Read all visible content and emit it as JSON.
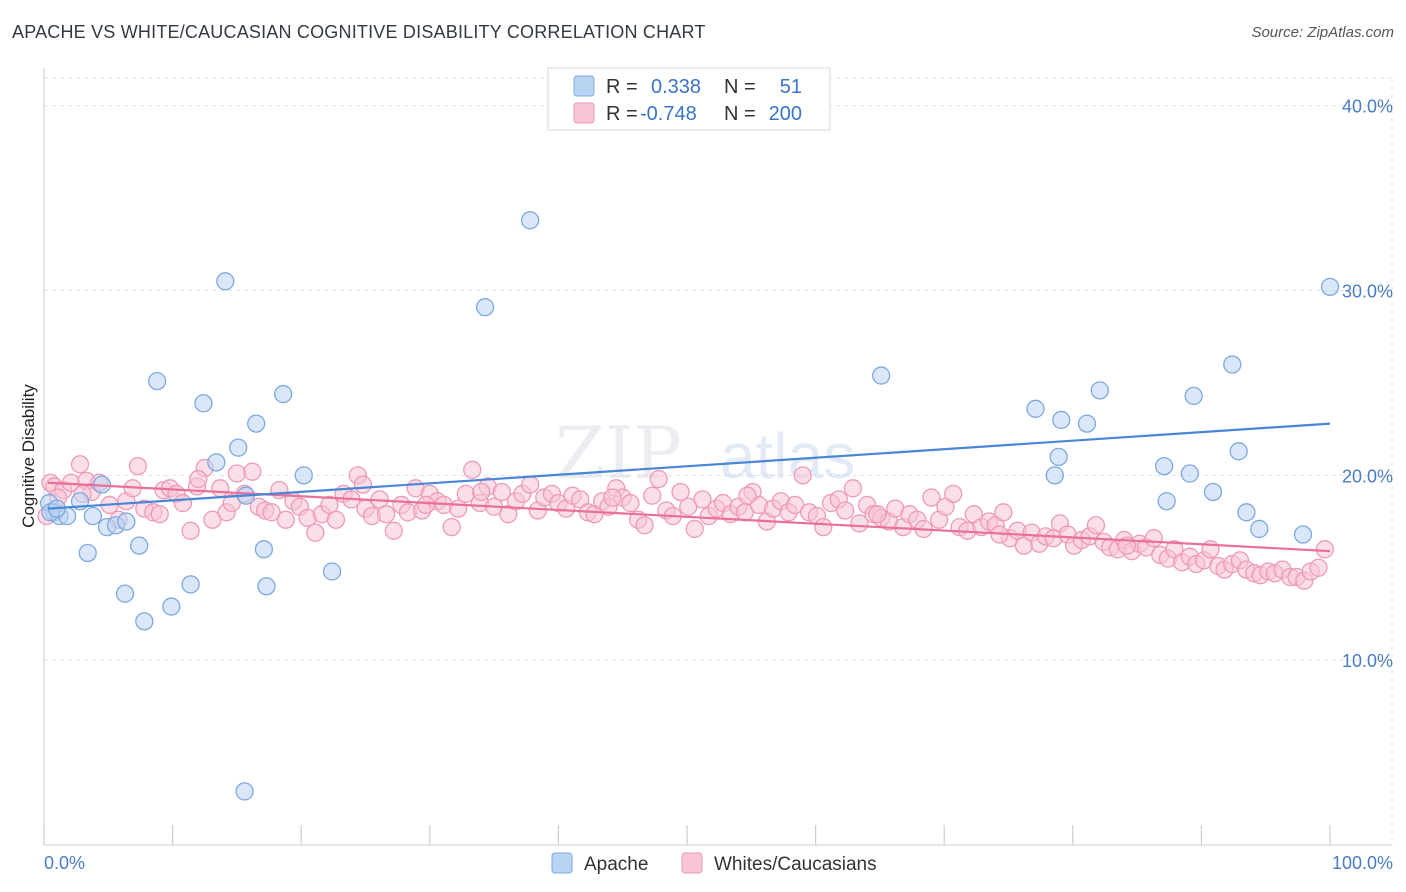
{
  "title": "APACHE VS WHITE/CAUCASIAN COGNITIVE DISABILITY CORRELATION CHART",
  "source": "Source: ZipAtlas.com",
  "watermark": {
    "zip": "ZIP",
    "atlas": "atlas"
  },
  "legend_stats": [
    {
      "r_label": "R =",
      "r_value": "0.338",
      "n_label": "N =",
      "n_value": "51",
      "color": "#a8c8f0"
    },
    {
      "r_label": "R =",
      "r_value": "-0.748",
      "n_label": "N =",
      "n_value": "200",
      "color": "#f5b8cc"
    }
  ],
  "chart_data": {
    "type": "scatter",
    "title": "APACHE VS WHITE/CAUCASIAN COGNITIVE DISABILITY CORRELATION CHART",
    "xlabel": "",
    "ylabel": "Cognitive Disability",
    "xlim": [
      0,
      100
    ],
    "ylim": [
      0,
      41.5
    ],
    "x_tick_labels": [
      "0.0%",
      "100.0%"
    ],
    "y_ticks": [
      10,
      20,
      30,
      40
    ],
    "y_tick_labels": [
      "10.0%",
      "20.0%",
      "30.0%",
      "40.0%"
    ],
    "grid": true,
    "legend_position": "top-center",
    "colors": {
      "apache": "#4a86d8",
      "apache_fill": "#b9d3f3",
      "white": "#e8709a",
      "white_fill": "#f8c5d6"
    },
    "series": [
      {
        "name": "Apache",
        "trend": {
          "x": [
            0,
            100
          ],
          "y": [
            18.2,
            22.8
          ]
        },
        "points": [
          [
            0.4,
            18.5
          ],
          [
            0.8,
            18.0
          ],
          [
            1.2,
            17.8
          ],
          [
            1.8,
            17.8
          ],
          [
            2.8,
            18.6
          ],
          [
            3.4,
            15.8
          ],
          [
            3.8,
            17.8
          ],
          [
            4.5,
            19.5
          ],
          [
            4.9,
            17.2
          ],
          [
            5.6,
            17.3
          ],
          [
            6.4,
            17.5
          ],
          [
            6.3,
            13.6
          ],
          [
            7.4,
            16.2
          ],
          [
            7.8,
            12.1
          ],
          [
            8.8,
            25.1
          ],
          [
            9.9,
            12.9
          ],
          [
            11.4,
            14.1
          ],
          [
            12.4,
            23.9
          ],
          [
            13.4,
            20.7
          ],
          [
            14.1,
            30.5
          ],
          [
            15.1,
            21.5
          ],
          [
            15.6,
            2.9
          ],
          [
            15.7,
            18.9
          ],
          [
            16.5,
            22.8
          ],
          [
            17.1,
            16.0
          ],
          [
            17.3,
            14.0
          ],
          [
            18.6,
            24.4
          ],
          [
            20.2,
            20.0
          ],
          [
            22.4,
            14.8
          ],
          [
            34.3,
            29.1
          ],
          [
            37.8,
            33.8
          ],
          [
            65.1,
            25.4
          ],
          [
            77.1,
            23.6
          ],
          [
            78.6,
            20.0
          ],
          [
            78.9,
            21.0
          ],
          [
            79.1,
            23.0
          ],
          [
            81.1,
            22.8
          ],
          [
            82.1,
            24.6
          ],
          [
            87.1,
            20.5
          ],
          [
            87.3,
            18.6
          ],
          [
            89.1,
            20.1
          ],
          [
            89.4,
            24.3
          ],
          [
            90.9,
            19.1
          ],
          [
            92.4,
            26.0
          ],
          [
            92.9,
            21.3
          ],
          [
            93.5,
            18.0
          ],
          [
            94.5,
            17.1
          ],
          [
            97.9,
            16.8
          ],
          [
            100.0,
            30.2
          ],
          [
            0.5,
            18.0
          ],
          [
            1.0,
            18.2
          ]
        ]
      },
      {
        "name": "Whites/Caucasians",
        "trend": {
          "x": [
            0,
            100
          ],
          "y": [
            19.6,
            15.9
          ]
        },
        "points": [
          [
            0.2,
            17.8
          ],
          [
            0.5,
            19.6
          ],
          [
            0.8,
            19.4
          ],
          [
            1.5,
            19.2
          ],
          [
            2.1,
            19.6
          ],
          [
            2.8,
            20.6
          ],
          [
            3.3,
            19.7
          ],
          [
            3.7,
            19.1
          ],
          [
            4.3,
            19.6
          ],
          [
            5.1,
            18.4
          ],
          [
            5.8,
            17.6
          ],
          [
            6.4,
            18.6
          ],
          [
            7.3,
            20.5
          ],
          [
            7.8,
            18.2
          ],
          [
            8.5,
            18.0
          ],
          [
            9.0,
            17.9
          ],
          [
            9.3,
            19.2
          ],
          [
            9.8,
            19.3
          ],
          [
            10.3,
            19.0
          ],
          [
            10.8,
            18.5
          ],
          [
            11.4,
            17.0
          ],
          [
            11.9,
            19.4
          ],
          [
            12.5,
            20.4
          ],
          [
            13.1,
            17.6
          ],
          [
            13.7,
            19.3
          ],
          [
            14.2,
            18.0
          ],
          [
            15.0,
            20.1
          ],
          [
            15.6,
            19.0
          ],
          [
            16.2,
            20.2
          ],
          [
            16.7,
            18.3
          ],
          [
            17.2,
            18.1
          ],
          [
            17.7,
            18.0
          ],
          [
            18.3,
            19.2
          ],
          [
            18.8,
            17.6
          ],
          [
            19.4,
            18.6
          ],
          [
            19.9,
            18.3
          ],
          [
            20.5,
            17.7
          ],
          [
            21.1,
            16.9
          ],
          [
            21.6,
            17.9
          ],
          [
            22.2,
            18.4
          ],
          [
            22.7,
            17.6
          ],
          [
            23.3,
            19.0
          ],
          [
            23.9,
            18.7
          ],
          [
            24.4,
            20.0
          ],
          [
            25.0,
            18.2
          ],
          [
            25.5,
            17.8
          ],
          [
            26.1,
            18.7
          ],
          [
            26.6,
            17.9
          ],
          [
            27.2,
            17.0
          ],
          [
            27.8,
            18.4
          ],
          [
            28.3,
            18.0
          ],
          [
            28.9,
            19.3
          ],
          [
            29.4,
            18.1
          ],
          [
            30.0,
            19.0
          ],
          [
            30.6,
            18.6
          ],
          [
            31.1,
            18.4
          ],
          [
            31.7,
            17.2
          ],
          [
            32.2,
            18.2
          ],
          [
            32.8,
            19.0
          ],
          [
            33.3,
            20.3
          ],
          [
            33.9,
            18.5
          ],
          [
            34.5,
            19.4
          ],
          [
            35.0,
            18.3
          ],
          [
            35.6,
            19.1
          ],
          [
            36.1,
            17.9
          ],
          [
            36.7,
            18.6
          ],
          [
            37.2,
            19.0
          ],
          [
            37.8,
            19.5
          ],
          [
            38.4,
            18.1
          ],
          [
            38.9,
            18.8
          ],
          [
            39.5,
            19.0
          ],
          [
            40.0,
            18.5
          ],
          [
            40.6,
            18.2
          ],
          [
            41.1,
            18.9
          ],
          [
            41.7,
            18.7
          ],
          [
            42.3,
            18.0
          ],
          [
            42.8,
            17.9
          ],
          [
            43.4,
            18.6
          ],
          [
            43.9,
            18.3
          ],
          [
            44.5,
            19.3
          ],
          [
            45.0,
            18.8
          ],
          [
            45.6,
            18.5
          ],
          [
            46.2,
            17.6
          ],
          [
            46.7,
            17.3
          ],
          [
            47.3,
            18.9
          ],
          [
            47.8,
            19.8
          ],
          [
            48.4,
            18.1
          ],
          [
            48.9,
            17.8
          ],
          [
            49.5,
            19.1
          ],
          [
            50.1,
            18.3
          ],
          [
            50.6,
            17.1
          ],
          [
            51.2,
            18.7
          ],
          [
            51.7,
            17.8
          ],
          [
            52.3,
            18.2
          ],
          [
            52.8,
            18.5
          ],
          [
            53.4,
            17.9
          ],
          [
            54.0,
            18.3
          ],
          [
            54.5,
            18.0
          ],
          [
            55.1,
            19.1
          ],
          [
            55.6,
            18.4
          ],
          [
            56.2,
            17.5
          ],
          [
            56.7,
            18.2
          ],
          [
            57.3,
            18.6
          ],
          [
            57.9,
            18.0
          ],
          [
            58.4,
            18.4
          ],
          [
            59.0,
            20.0
          ],
          [
            59.5,
            18.0
          ],
          [
            60.1,
            17.8
          ],
          [
            60.6,
            17.2
          ],
          [
            61.2,
            18.5
          ],
          [
            61.8,
            18.7
          ],
          [
            62.3,
            18.1
          ],
          [
            62.9,
            19.3
          ],
          [
            63.4,
            17.4
          ],
          [
            64.0,
            18.4
          ],
          [
            64.5,
            17.9
          ],
          [
            65.1,
            17.7
          ],
          [
            65.7,
            17.5
          ],
          [
            66.2,
            18.2
          ],
          [
            66.8,
            17.2
          ],
          [
            67.3,
            17.9
          ],
          [
            67.9,
            17.6
          ],
          [
            68.4,
            17.1
          ],
          [
            69.0,
            18.8
          ],
          [
            69.6,
            17.6
          ],
          [
            70.1,
            18.3
          ],
          [
            70.7,
            19.0
          ],
          [
            71.2,
            17.2
          ],
          [
            71.8,
            17.0
          ],
          [
            72.3,
            17.9
          ],
          [
            72.9,
            17.2
          ],
          [
            73.5,
            17.5
          ],
          [
            74.0,
            17.3
          ],
          [
            74.6,
            18.0
          ],
          [
            75.1,
            16.6
          ],
          [
            75.7,
            17.0
          ],
          [
            76.2,
            16.2
          ],
          [
            76.8,
            16.9
          ],
          [
            77.4,
            16.3
          ],
          [
            77.9,
            16.7
          ],
          [
            78.5,
            16.6
          ],
          [
            79.0,
            17.4
          ],
          [
            79.6,
            16.8
          ],
          [
            80.1,
            16.2
          ],
          [
            80.7,
            16.5
          ],
          [
            81.3,
            16.7
          ],
          [
            81.8,
            17.3
          ],
          [
            82.4,
            16.4
          ],
          [
            82.9,
            16.1
          ],
          [
            83.5,
            16.0
          ],
          [
            84.0,
            16.5
          ],
          [
            84.6,
            15.9
          ],
          [
            85.2,
            16.3
          ],
          [
            85.7,
            16.1
          ],
          [
            86.3,
            16.6
          ],
          [
            86.8,
            15.7
          ],
          [
            87.4,
            15.5
          ],
          [
            87.9,
            16.0
          ],
          [
            88.5,
            15.3
          ],
          [
            89.1,
            15.6
          ],
          [
            89.6,
            15.2
          ],
          [
            90.2,
            15.4
          ],
          [
            90.7,
            16.0
          ],
          [
            91.3,
            15.1
          ],
          [
            91.8,
            14.9
          ],
          [
            92.4,
            15.2
          ],
          [
            93.0,
            15.4
          ],
          [
            93.5,
            14.9
          ],
          [
            94.1,
            14.7
          ],
          [
            94.6,
            14.6
          ],
          [
            95.2,
            14.8
          ],
          [
            95.7,
            14.7
          ],
          [
            96.3,
            14.9
          ],
          [
            96.9,
            14.5
          ],
          [
            97.4,
            14.5
          ],
          [
            98.0,
            14.3
          ],
          [
            98.5,
            14.8
          ],
          [
            99.1,
            15.0
          ],
          [
            99.6,
            16.0
          ],
          [
            1.1,
            18.8
          ],
          [
            3.0,
            19.0
          ],
          [
            6.9,
            19.3
          ],
          [
            12.0,
            19.8
          ],
          [
            14.6,
            18.5
          ],
          [
            24.8,
            19.5
          ],
          [
            29.7,
            18.4
          ],
          [
            34.0,
            19.1
          ],
          [
            44.2,
            18.8
          ],
          [
            54.7,
            18.9
          ],
          [
            64.8,
            17.9
          ],
          [
            74.3,
            16.8
          ],
          [
            84.2,
            16.2
          ]
        ]
      }
    ]
  },
  "bottom_legend": [
    {
      "label": "Apache",
      "color": "#b9d3f3",
      "stroke": "#7ea9e0"
    },
    {
      "label": "Whites/Caucasians",
      "color": "#f8c5d6",
      "stroke": "#e995b2"
    }
  ]
}
